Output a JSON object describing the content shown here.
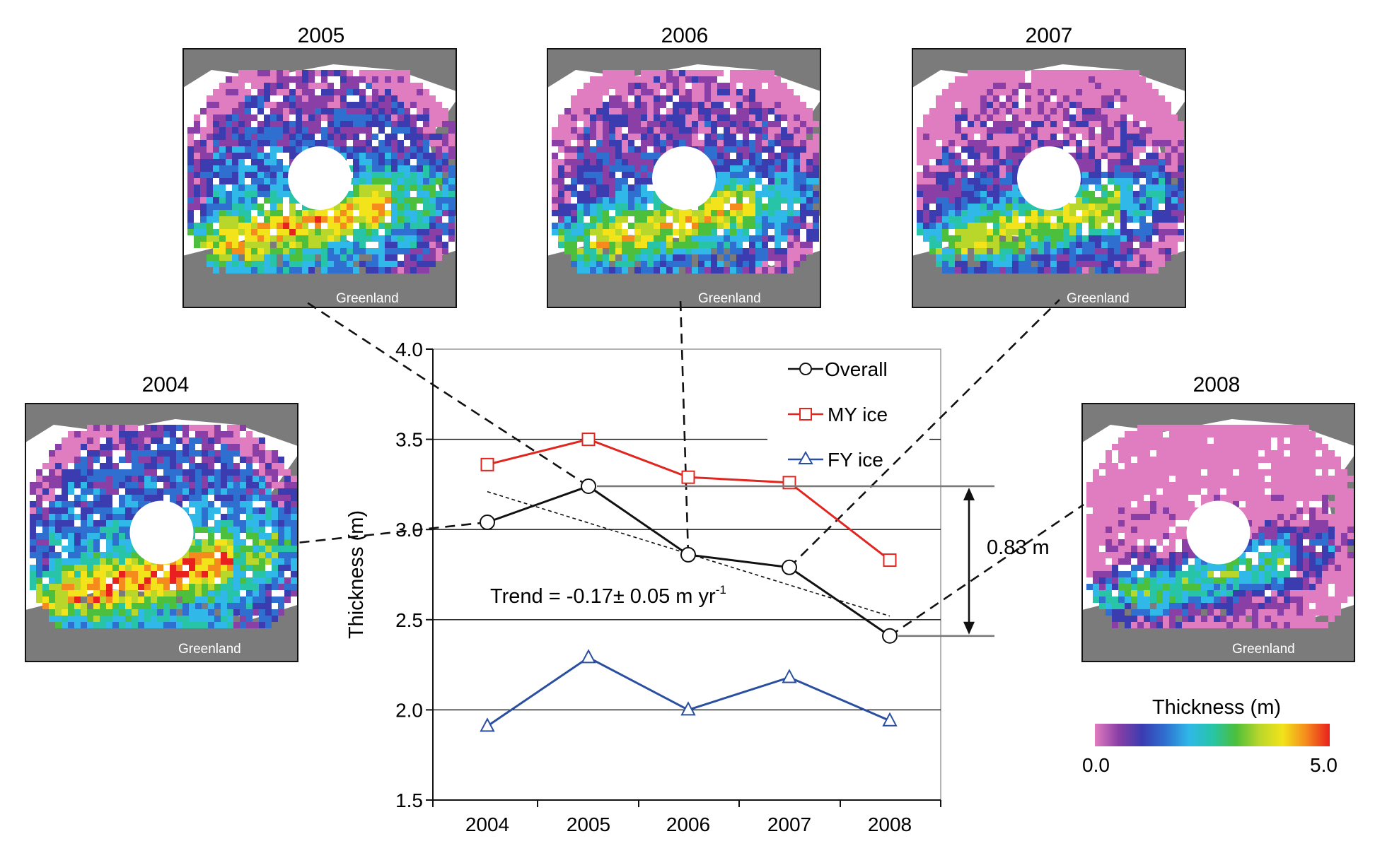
{
  "maps": [
    {
      "year": "2004",
      "place_label": "Greenland"
    },
    {
      "year": "2005",
      "place_label": "Greenland"
    },
    {
      "year": "2006",
      "place_label": "Greenland"
    },
    {
      "year": "2007",
      "place_label": "Greenland"
    },
    {
      "year": "2008",
      "place_label": "Greenland"
    }
  ],
  "colorbar": {
    "title": "Thickness (m)",
    "min_label": "0.0",
    "max_label": "5.0",
    "colors": [
      "#e07cc0",
      "#8a3fa6",
      "#3a3cb0",
      "#2f6fd0",
      "#2fb8e8",
      "#27c4a8",
      "#4cbf3c",
      "#b9d62a",
      "#f2e31a",
      "#f58a1d",
      "#e8201e"
    ]
  },
  "annotations": {
    "trend": "Trend = -0.17± 0.05 m yr",
    "trend_exponent": "-1",
    "difference": "0.83 m"
  },
  "chart_data": {
    "type": "line",
    "x": [
      "2004",
      "2005",
      "2006",
      "2007",
      "2008"
    ],
    "ylabel": "Thickness (m)",
    "xlabel": "",
    "ylim": [
      1.5,
      4.0
    ],
    "yticks": [
      "1.5",
      "2.0",
      "2.5",
      "3.0",
      "3.5",
      "4.0"
    ],
    "grid_values": [
      2.0,
      2.5,
      3.0,
      3.5
    ],
    "legend_position": "top-right",
    "series": [
      {
        "name": "Overall",
        "marker": "circle",
        "color": "#111111",
        "values": [
          3.04,
          3.24,
          2.86,
          2.79,
          2.41
        ]
      },
      {
        "name": "MY ice",
        "marker": "square",
        "color": "#e0261f",
        "values": [
          3.36,
          3.5,
          3.29,
          3.26,
          2.83
        ]
      },
      {
        "name": "FY ice",
        "marker": "triangle",
        "color": "#2a4fa0",
        "values": [
          1.91,
          2.29,
          2.0,
          2.18,
          1.94
        ]
      }
    ],
    "trend_line": {
      "from": [
        2004,
        3.21
      ],
      "to": [
        2008,
        2.52
      ]
    },
    "difference_bracket": {
      "upper": 3.24,
      "lower": 2.41
    }
  }
}
